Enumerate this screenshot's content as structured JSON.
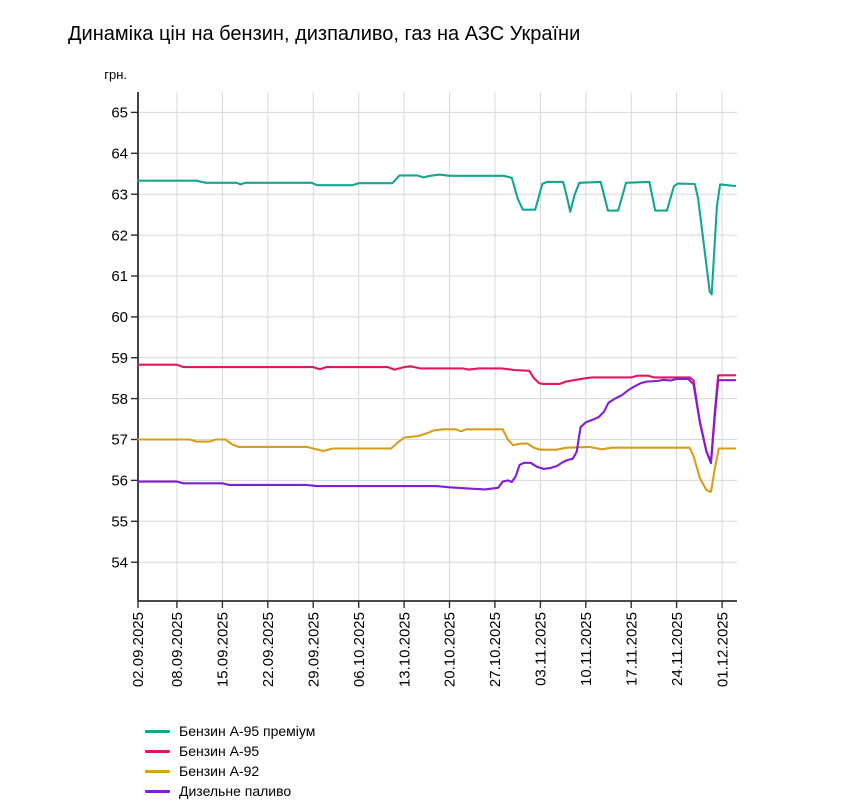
{
  "chart_data": {
    "type": "line",
    "title": "Динаміка цін на бензин, дизпаливо, газ на АЗС України",
    "ylabel": "грн.",
    "xlabel": "",
    "xlim": [
      0,
      92.3
    ],
    "ylim": [
      53.05,
      65.5
    ],
    "grid": true,
    "legend_position": "bottom-left",
    "grid_color": "#d8d8d8",
    "axis_color": "#2f2f2f",
    "y_ticks": [
      54,
      55,
      56,
      57,
      58,
      59,
      60,
      61,
      62,
      63,
      64,
      65
    ],
    "x_ticks": [
      {
        "day": 0,
        "label": "02.09.2025"
      },
      {
        "day": 6,
        "label": "08.09.2025"
      },
      {
        "day": 13,
        "label": "15.09.2025"
      },
      {
        "day": 20,
        "label": "22.09.2025"
      },
      {
        "day": 27,
        "label": "29.09.2025"
      },
      {
        "day": 34,
        "label": "06.10.2025"
      },
      {
        "day": 41,
        "label": "13.10.2025"
      },
      {
        "day": 48,
        "label": "20.10.2025"
      },
      {
        "day": 55,
        "label": "27.10.2025"
      },
      {
        "day": 62,
        "label": "03.11.2025"
      },
      {
        "day": 69,
        "label": "10.11.2025"
      },
      {
        "day": 76,
        "label": "17.11.2025"
      },
      {
        "day": 83,
        "label": "24.11.2025"
      },
      {
        "day": 90,
        "label": "01.12.2025"
      }
    ],
    "series": [
      {
        "name": "Бензин А-95 преміум",
        "color": "#14a68f",
        "points": [
          [
            0,
            63.33
          ],
          [
            9,
            63.33
          ],
          [
            10.5,
            63.28
          ],
          [
            15.2,
            63.28
          ],
          [
            15.8,
            63.24
          ],
          [
            16.5,
            63.28
          ],
          [
            26.8,
            63.28
          ],
          [
            27.6,
            63.22
          ],
          [
            33,
            63.22
          ],
          [
            34,
            63.27
          ],
          [
            39.2,
            63.27
          ],
          [
            40.3,
            63.46
          ],
          [
            43,
            63.46
          ],
          [
            44,
            63.41
          ],
          [
            45,
            63.45
          ],
          [
            46.5,
            63.48
          ],
          [
            48,
            63.45
          ],
          [
            56.4,
            63.45
          ],
          [
            57.6,
            63.4
          ],
          [
            58.5,
            62.9
          ],
          [
            59.3,
            62.62
          ],
          [
            61.2,
            62.62
          ],
          [
            62.3,
            63.25
          ],
          [
            63,
            63.3
          ],
          [
            65.5,
            63.3
          ],
          [
            66,
            63.0
          ],
          [
            66.6,
            62.57
          ],
          [
            67.3,
            63.0
          ],
          [
            68,
            63.28
          ],
          [
            71.3,
            63.3
          ],
          [
            72.4,
            62.6
          ],
          [
            74,
            62.6
          ],
          [
            75.2,
            63.28
          ],
          [
            78.8,
            63.3
          ],
          [
            79.7,
            62.6
          ],
          [
            81.5,
            62.6
          ],
          [
            82.6,
            63.2
          ],
          [
            83.2,
            63.26
          ],
          [
            85.8,
            63.25
          ],
          [
            86.3,
            62.9
          ],
          [
            88.1,
            60.62
          ],
          [
            88.4,
            60.55
          ],
          [
            89.2,
            62.7
          ],
          [
            89.7,
            63.24
          ],
          [
            92,
            63.2
          ]
        ]
      },
      {
        "name": "Бензин А-95",
        "color": "#e3175f",
        "points": [
          [
            0,
            58.83
          ],
          [
            6,
            58.83
          ],
          [
            7,
            58.77
          ],
          [
            27,
            58.77
          ],
          [
            28,
            58.72
          ],
          [
            29,
            58.77
          ],
          [
            38.5,
            58.77
          ],
          [
            39.5,
            58.71
          ],
          [
            41,
            58.77
          ],
          [
            42,
            58.79
          ],
          [
            43.5,
            58.74
          ],
          [
            50,
            58.74
          ],
          [
            51,
            58.71
          ],
          [
            52.5,
            58.74
          ],
          [
            56,
            58.74
          ],
          [
            58,
            58.7
          ],
          [
            60.3,
            58.68
          ],
          [
            61,
            58.5
          ],
          [
            61.8,
            58.38
          ],
          [
            62.3,
            58.36
          ],
          [
            65,
            58.36
          ],
          [
            66,
            58.42
          ],
          [
            67.5,
            58.46
          ],
          [
            69,
            58.5
          ],
          [
            70,
            58.52
          ],
          [
            76,
            58.52
          ],
          [
            77,
            58.56
          ],
          [
            78.6,
            58.56
          ],
          [
            79.5,
            58.52
          ],
          [
            85,
            58.52
          ],
          [
            85.6,
            58.45
          ],
          [
            86.5,
            57.5
          ],
          [
            87.6,
            56.7
          ],
          [
            88.3,
            56.47
          ],
          [
            88.9,
            57.7
          ],
          [
            89.4,
            58.57
          ],
          [
            92,
            58.57
          ]
        ]
      },
      {
        "name": "Бензин А-92",
        "color": "#d79e1c",
        "points": [
          [
            0,
            57.0
          ],
          [
            8,
            57.0
          ],
          [
            9,
            56.95
          ],
          [
            11,
            56.95
          ],
          [
            12,
            57.0
          ],
          [
            13.5,
            57.0
          ],
          [
            14.5,
            56.88
          ],
          [
            15.5,
            56.82
          ],
          [
            26,
            56.82
          ],
          [
            27,
            56.78
          ],
          [
            28.5,
            56.72
          ],
          [
            30,
            56.78
          ],
          [
            39,
            56.78
          ],
          [
            40,
            56.92
          ],
          [
            41,
            57.05
          ],
          [
            43,
            57.08
          ],
          [
            44.5,
            57.15
          ],
          [
            45.5,
            57.22
          ],
          [
            47,
            57.25
          ],
          [
            49,
            57.25
          ],
          [
            49.8,
            57.2
          ],
          [
            50.6,
            57.25
          ],
          [
            56.2,
            57.25
          ],
          [
            57,
            57.0
          ],
          [
            57.8,
            56.86
          ],
          [
            59,
            56.9
          ],
          [
            60,
            56.9
          ],
          [
            61,
            56.8
          ],
          [
            62,
            56.75
          ],
          [
            64.5,
            56.75
          ],
          [
            66,
            56.8
          ],
          [
            69.5,
            56.82
          ],
          [
            71.5,
            56.76
          ],
          [
            73,
            56.8
          ],
          [
            85,
            56.8
          ],
          [
            85.6,
            56.6
          ],
          [
            86.6,
            56.05
          ],
          [
            87.6,
            55.76
          ],
          [
            88.3,
            55.72
          ],
          [
            88.9,
            56.3
          ],
          [
            89.5,
            56.78
          ],
          [
            92,
            56.78
          ]
        ]
      },
      {
        "name": "Дизельне паливо",
        "color": "#811dd4",
        "points": [
          [
            0,
            55.97
          ],
          [
            6,
            55.97
          ],
          [
            7,
            55.93
          ],
          [
            13,
            55.93
          ],
          [
            14,
            55.89
          ],
          [
            26,
            55.89
          ],
          [
            27.5,
            55.86
          ],
          [
            46,
            55.86
          ],
          [
            48,
            55.83
          ],
          [
            51,
            55.8
          ],
          [
            53.5,
            55.78
          ],
          [
            54.5,
            55.8
          ],
          [
            55.5,
            55.82
          ],
          [
            56.2,
            55.97
          ],
          [
            57,
            56.0
          ],
          [
            57.6,
            55.96
          ],
          [
            58.2,
            56.1
          ],
          [
            58.8,
            56.38
          ],
          [
            59.5,
            56.43
          ],
          [
            60.5,
            56.43
          ],
          [
            61.5,
            56.33
          ],
          [
            62.5,
            56.28
          ],
          [
            63.5,
            56.3
          ],
          [
            64.5,
            56.35
          ],
          [
            65.5,
            56.45
          ],
          [
            66.2,
            56.5
          ],
          [
            67,
            56.53
          ],
          [
            67.6,
            56.7
          ],
          [
            68.2,
            57.3
          ],
          [
            69,
            57.42
          ],
          [
            70,
            57.48
          ],
          [
            71,
            57.55
          ],
          [
            71.8,
            57.68
          ],
          [
            72.5,
            57.9
          ],
          [
            73.5,
            58.0
          ],
          [
            74.5,
            58.08
          ],
          [
            75.5,
            58.2
          ],
          [
            76.5,
            58.3
          ],
          [
            77.5,
            58.38
          ],
          [
            78.5,
            58.42
          ],
          [
            80,
            58.43
          ],
          [
            81,
            58.46
          ],
          [
            82,
            58.44
          ],
          [
            83,
            58.48
          ],
          [
            84.8,
            58.48
          ],
          [
            85.6,
            58.35
          ],
          [
            86.6,
            57.4
          ],
          [
            87.6,
            56.7
          ],
          [
            88.3,
            56.42
          ],
          [
            88.9,
            57.6
          ],
          [
            89.4,
            58.45
          ],
          [
            92,
            58.45
          ]
        ]
      }
    ]
  }
}
